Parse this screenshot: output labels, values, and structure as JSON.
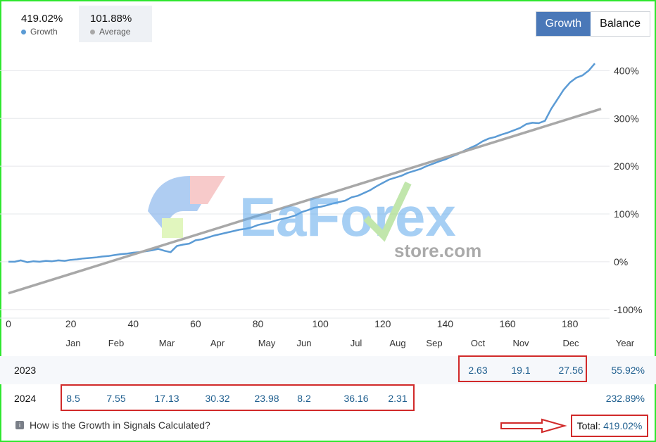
{
  "header": {
    "growth_value": "419.02%",
    "growth_label": "Growth",
    "average_value": "101.88%",
    "average_label": "Average",
    "toggle_growth": "Growth",
    "toggle_balance": "Balance"
  },
  "colors": {
    "growth_line": "#5b9bd5",
    "average_line": "#a8a8a8",
    "accent": "#4a78b8",
    "highlight_box": "#d12a2a",
    "frame": "#2ee62e"
  },
  "chart_data": {
    "type": "line",
    "x_ticks": [
      "0",
      "20",
      "40",
      "60",
      "80",
      "100",
      "120",
      "140",
      "160",
      "180"
    ],
    "y_ticks": [
      "400%",
      "300%",
      "200%",
      "100%",
      "0%",
      "-100%"
    ],
    "xlim": [
      0,
      190
    ],
    "ylim": [
      -115,
      430
    ],
    "series": [
      {
        "name": "Growth",
        "x": [
          0,
          2,
          4,
          6,
          8,
          10,
          12,
          14,
          16,
          18,
          20,
          22,
          24,
          26,
          28,
          30,
          32,
          34,
          36,
          38,
          40,
          42,
          44,
          46,
          48,
          50,
          52,
          54,
          56,
          58,
          60,
          62,
          64,
          66,
          68,
          70,
          72,
          74,
          76,
          78,
          80,
          82,
          84,
          86,
          88,
          90,
          92,
          94,
          96,
          98,
          100,
          102,
          104,
          106,
          108,
          110,
          112,
          114,
          116,
          118,
          120,
          122,
          124,
          126,
          128,
          130,
          132,
          134,
          136,
          138,
          140,
          142,
          144,
          146,
          148,
          150,
          152,
          154,
          156,
          158,
          160,
          162,
          164,
          166,
          168,
          170,
          172,
          174,
          176,
          178,
          180,
          182,
          184,
          186,
          188
        ],
        "y": [
          0,
          0,
          3,
          -1,
          1,
          0,
          2,
          1,
          3,
          2,
          4,
          5,
          7,
          8,
          9,
          11,
          12,
          14,
          16,
          17,
          19,
          20,
          22,
          24,
          27,
          23,
          20,
          33,
          36,
          38,
          45,
          47,
          51,
          55,
          58,
          61,
          64,
          67,
          69,
          72,
          77,
          80,
          83,
          87,
          90,
          93,
          97,
          104,
          108,
          113,
          115,
          118,
          122,
          125,
          128,
          135,
          138,
          144,
          150,
          158,
          165,
          172,
          176,
          180,
          186,
          190,
          194,
          200,
          205,
          210,
          214,
          220,
          225,
          232,
          238,
          244,
          252,
          258,
          261,
          266,
          270,
          275,
          280,
          288,
          291,
          290,
          295,
          320,
          340,
          360,
          375,
          385,
          390,
          400,
          415
        ]
      },
      {
        "name": "Average",
        "x": [
          0,
          190
        ],
        "y": [
          -66,
          320
        ]
      }
    ]
  },
  "table": {
    "months": [
      "Jan",
      "Feb",
      "Mar",
      "Apr",
      "May",
      "Jun",
      "Jul",
      "Aug",
      "Sep",
      "Oct",
      "Nov",
      "Dec"
    ],
    "year_header": "Year",
    "rows": [
      {
        "year": "2023",
        "values": [
          "",
          "",
          "",
          "",
          "",
          "",
          "",
          "",
          "",
          "2.63",
          "19.1",
          "27.56"
        ],
        "total": "55.92%"
      },
      {
        "year": "2024",
        "values": [
          "8.5",
          "7.55",
          "17.13",
          "30.32",
          "23.98",
          "8.2",
          "36.16",
          "2.31",
          "",
          "",
          "",
          ""
        ],
        "total": "232.89%"
      }
    ]
  },
  "footer": {
    "link_text": "How is the Growth in Signals Calculated?",
    "total_label": "Total:",
    "total_value": "419.02%"
  },
  "watermark": {
    "brand": "EaForex",
    "sub": "store.com"
  }
}
